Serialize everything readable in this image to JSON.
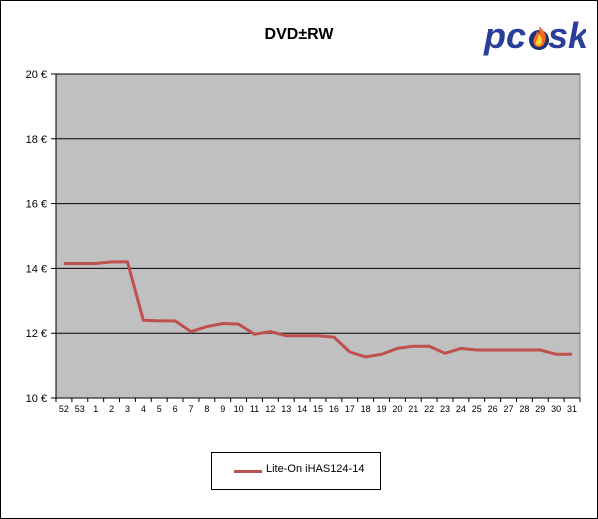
{
  "logo": {
    "text_left": "pc",
    "text_right": "sk"
  },
  "legend": {
    "label": "Lite-On  iHAS124-14"
  },
  "chart_data": {
    "type": "line",
    "title": "DVD±RW",
    "xlabel": "",
    "ylabel": "",
    "categories": [
      "52",
      "53",
      "1",
      "2",
      "3",
      "4",
      "5",
      "6",
      "7",
      "8",
      "9",
      "10",
      "11",
      "12",
      "13",
      "14",
      "15",
      "16",
      "17",
      "18",
      "19",
      "20",
      "21",
      "22",
      "23",
      "24",
      "25",
      "26",
      "27",
      "28",
      "29",
      "30",
      "31"
    ],
    "y_ticks": [
      "10 €",
      "12 €",
      "14 €",
      "16 €",
      "18 €",
      "20 €"
    ],
    "ylim": [
      10,
      20
    ],
    "y_tick_step": 2,
    "grid": true,
    "legend_position": "bottom",
    "colors": {
      "plot_background": "#c0c0c0",
      "series": "#c0504d"
    },
    "series": [
      {
        "name": "Lite-On  iHAS124-14",
        "values": [
          14.15,
          14.15,
          14.15,
          14.2,
          14.2,
          12.4,
          12.38,
          12.38,
          12.05,
          12.2,
          12.3,
          12.28,
          11.97,
          12.05,
          11.92,
          11.92,
          11.92,
          11.88,
          11.42,
          11.27,
          11.35,
          11.53,
          11.6,
          11.6,
          11.38,
          11.53,
          11.48,
          11.48,
          11.48,
          11.48,
          11.48,
          11.35,
          11.35
        ]
      }
    ]
  }
}
